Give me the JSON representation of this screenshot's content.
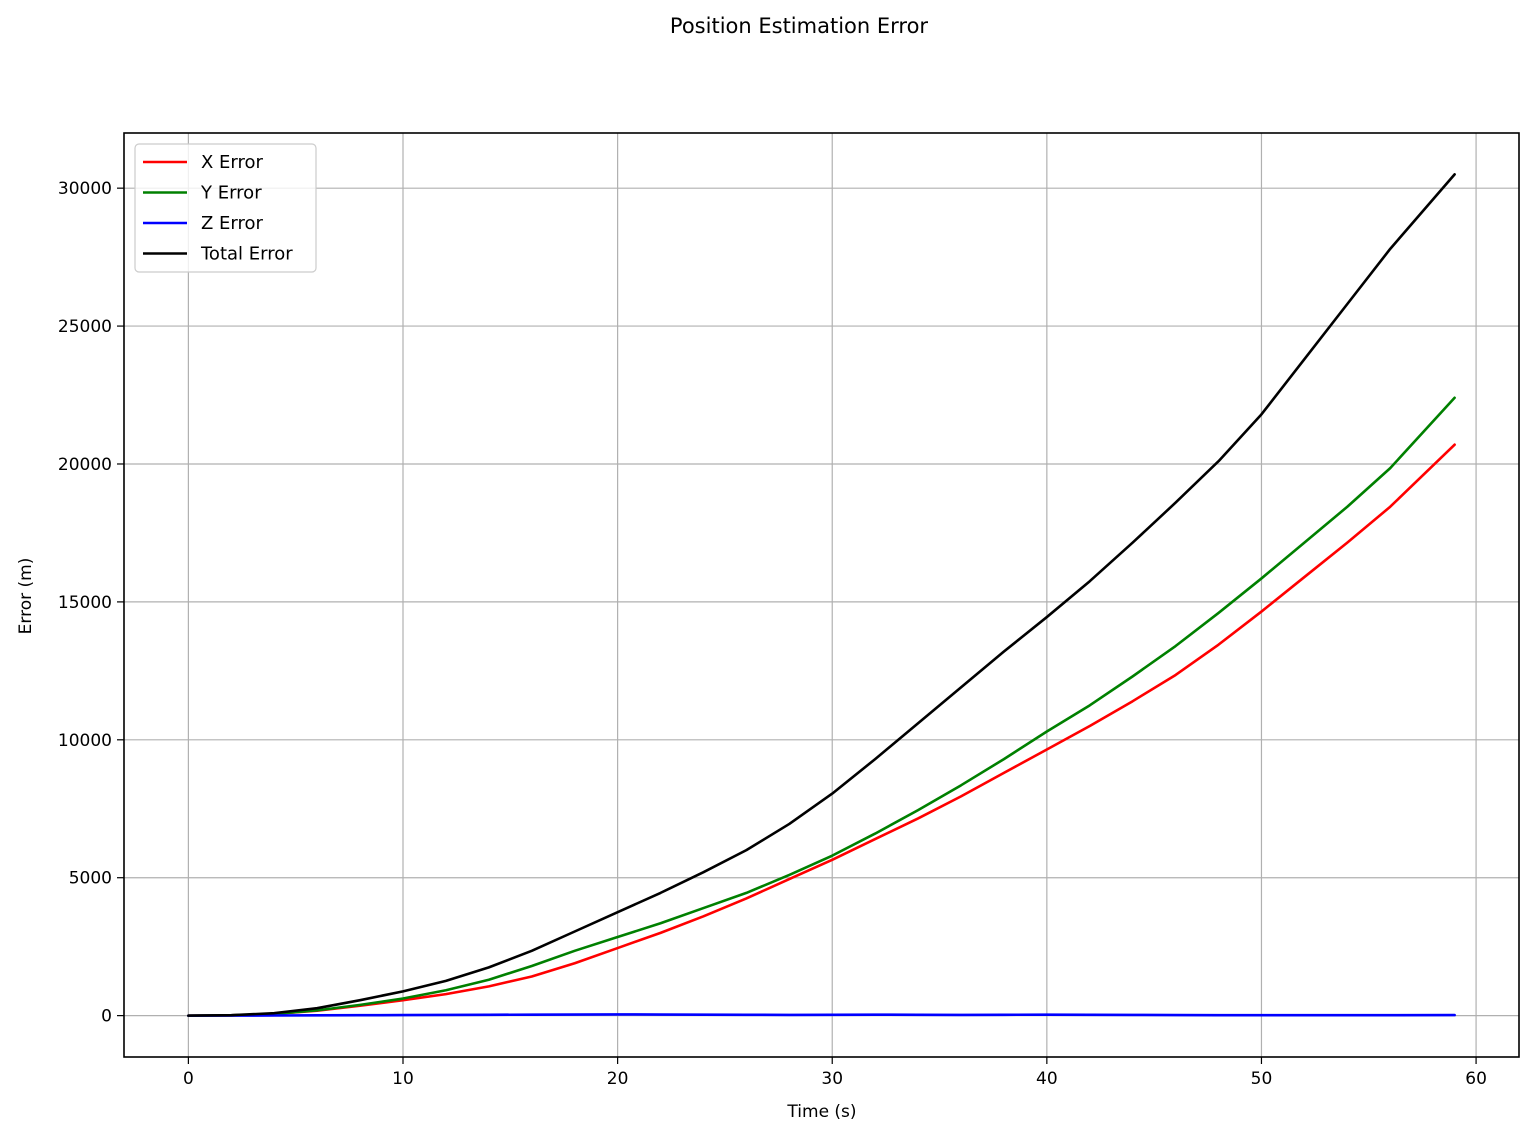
{
  "chart_data": {
    "type": "line",
    "title": "Position Estimation Error",
    "xlabel": "Time (s)",
    "ylabel": "Error (m)",
    "xlim": [
      -3,
      62
    ],
    "ylim": [
      -1500,
      32000
    ],
    "xticks": [
      0,
      10,
      20,
      30,
      40,
      50,
      60
    ],
    "yticks": [
      0,
      5000,
      10000,
      15000,
      20000,
      25000,
      30000
    ],
    "grid": true,
    "legend_position": "upper left",
    "x": [
      0,
      2,
      4,
      6,
      8,
      10,
      12,
      14,
      16,
      18,
      20,
      22,
      24,
      26,
      28,
      30,
      32,
      34,
      36,
      38,
      40,
      42,
      44,
      46,
      48,
      50,
      52,
      54,
      56,
      59
    ],
    "series": [
      {
        "name": "X Error",
        "color": "#ff0000",
        "values": [
          0,
          10,
          60,
          180,
          360,
          560,
          780,
          1060,
          1420,
          1900,
          2450,
          3000,
          3600,
          4250,
          4950,
          5650,
          6400,
          7150,
          7950,
          8800,
          9650,
          10500,
          11400,
          12350,
          13450,
          14650,
          15900,
          17150,
          18450,
          20700
        ]
      },
      {
        "name": "Y Error",
        "color": "#008000",
        "values": [
          0,
          10,
          60,
          190,
          390,
          620,
          920,
          1300,
          1800,
          2350,
          2850,
          3350,
          3900,
          4450,
          5100,
          5800,
          6600,
          7450,
          8350,
          9300,
          10300,
          11250,
          12300,
          13400,
          14600,
          15850,
          17150,
          18450,
          19850,
          22400
        ]
      },
      {
        "name": "Z Error",
        "color": "#0000ff",
        "values": [
          0,
          2,
          5,
          10,
          15,
          20,
          25,
          30,
          35,
          40,
          45,
          40,
          35,
          30,
          25,
          30,
          35,
          30,
          25,
          30,
          35,
          30,
          25,
          20,
          15,
          15,
          15,
          15,
          15,
          20
        ]
      },
      {
        "name": "Total Error",
        "color": "#000000",
        "values": [
          0,
          15,
          90,
          270,
          560,
          880,
          1260,
          1750,
          2350,
          3050,
          3750,
          4450,
          5200,
          6000,
          6950,
          8050,
          9300,
          10600,
          11900,
          13200,
          14450,
          15750,
          17150,
          18600,
          20100,
          21800,
          23800,
          25800,
          27800,
          30500
        ]
      }
    ]
  }
}
